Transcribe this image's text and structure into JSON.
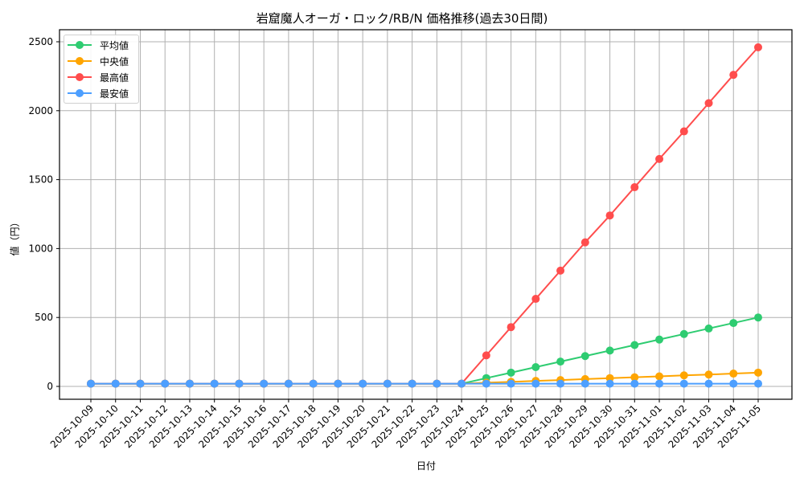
{
  "chart_data": {
    "type": "line",
    "title": "岩窟魔人オーガ・ロック/RB/N 価格推移(過去30日間)",
    "xlabel": "日付",
    "ylabel": "値（円）",
    "ylim": [
      -90,
      2620
    ],
    "yticks": [
      0,
      500,
      1000,
      1500,
      2000,
      2500
    ],
    "grid": true,
    "legend_position": "upper left",
    "x": [
      "2025-10-09",
      "2025-10-10",
      "2025-10-11",
      "2025-10-12",
      "2025-10-13",
      "2025-10-14",
      "2025-10-15",
      "2025-10-16",
      "2025-10-17",
      "2025-10-18",
      "2025-10-19",
      "2025-10-20",
      "2025-10-21",
      "2025-10-22",
      "2025-10-23",
      "2025-10-24",
      "2025-10-25",
      "2025-10-26",
      "2025-10-27",
      "2025-10-28",
      "2025-10-29",
      "2025-10-30",
      "2025-10-31",
      "2025-11-01",
      "2025-11-02",
      "2025-11-03",
      "2025-11-04",
      "2025-11-05"
    ],
    "series": [
      {
        "name": "平均値",
        "color": "#2ecc71",
        "values": [
          20,
          20,
          20,
          20,
          20,
          20,
          20,
          20,
          20,
          20,
          20,
          20,
          20,
          20,
          20,
          20,
          60,
          100,
          140,
          180,
          220,
          260,
          300,
          340,
          380,
          420,
          460,
          500
        ]
      },
      {
        "name": "中央値",
        "color": "#ffa500",
        "values": [
          20,
          20,
          20,
          20,
          20,
          20,
          20,
          20,
          20,
          20,
          20,
          20,
          20,
          20,
          20,
          20,
          27,
          33,
          40,
          46,
          53,
          60,
          66,
          73,
          80,
          86,
          93,
          100
        ]
      },
      {
        "name": "最高値",
        "color": "#ff4d4d",
        "values": [
          20,
          20,
          20,
          20,
          20,
          20,
          20,
          20,
          20,
          20,
          20,
          20,
          20,
          20,
          20,
          20,
          225,
          430,
          635,
          840,
          1045,
          1240,
          1445,
          1650,
          1850,
          2055,
          2260,
          2460
        ]
      },
      {
        "name": "最安値",
        "color": "#4d9fff",
        "values": [
          20,
          20,
          20,
          20,
          20,
          20,
          20,
          20,
          20,
          20,
          20,
          20,
          20,
          20,
          20,
          20,
          20,
          20,
          20,
          20,
          20,
          20,
          20,
          20,
          20,
          20,
          20,
          20
        ]
      }
    ]
  }
}
